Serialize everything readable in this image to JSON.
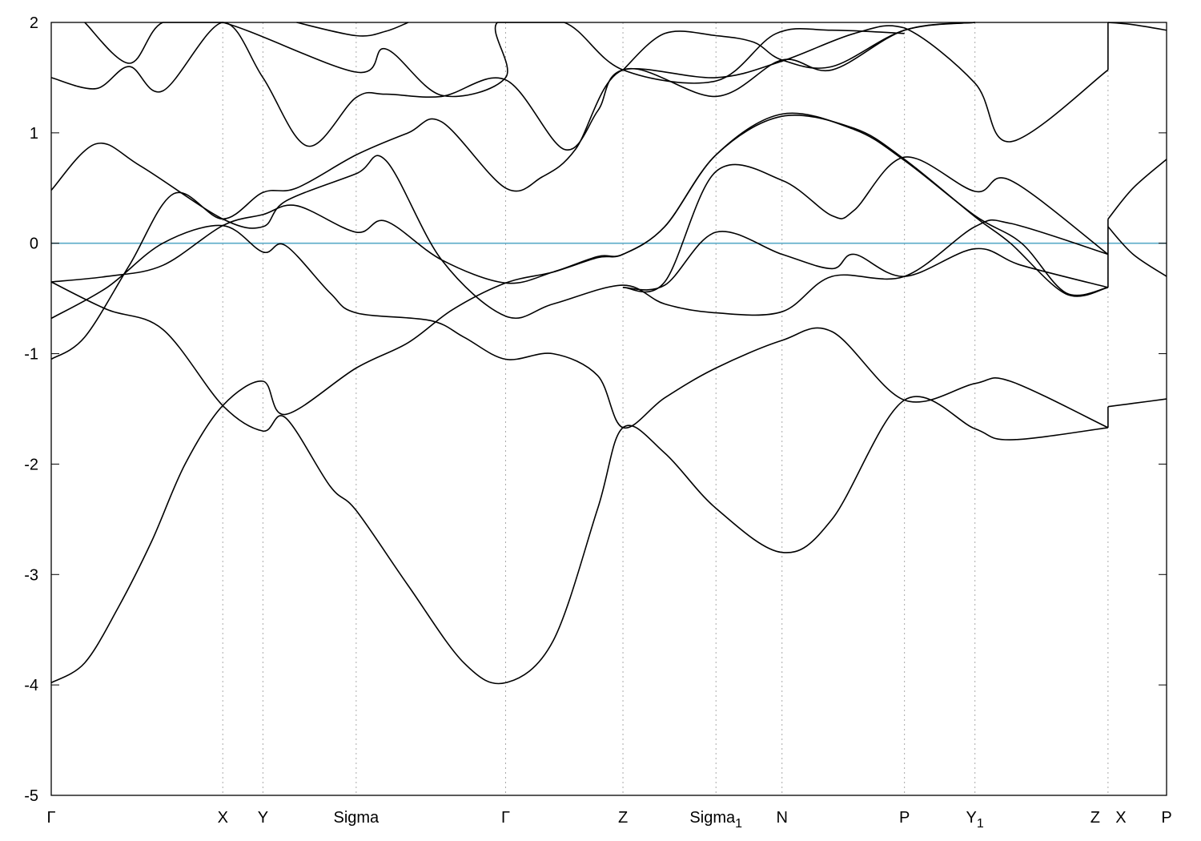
{
  "chart_data": {
    "type": "line",
    "title": "",
    "xlabel": "",
    "ylabel": "",
    "ylim": [
      -5,
      2
    ],
    "xlim": [
      0,
      1
    ],
    "yticks": [
      2,
      1,
      0,
      -1,
      -2,
      -3,
      -4,
      -5
    ],
    "grid": "vertical dotted lines at high-symmetry points",
    "fermi_level": 0,
    "fermi_color": "#5aaac8",
    "kpoints": [
      {
        "label": "Γ",
        "sub": "",
        "x": 0.0
      },
      {
        "label": "X",
        "sub": "",
        "x": 0.1538
      },
      {
        "label": "Y",
        "sub": "",
        "x": 0.1898
      },
      {
        "label": "Sigma",
        "sub": "",
        "x": 0.2734
      },
      {
        "label": "Γ",
        "sub": "",
        "x": 0.4074
      },
      {
        "label": "Z",
        "sub": "",
        "x": 0.5126
      },
      {
        "label": "Sigma",
        "sub": "1",
        "x": 0.596
      },
      {
        "label": "N",
        "sub": "",
        "x": 0.6552
      },
      {
        "label": "P",
        "sub": "",
        "x": 0.765
      },
      {
        "label": "Y",
        "sub": "1",
        "x": 0.8282
      },
      {
        "label": "Z",
        "sub": "",
        "x": 0.9475
      },
      {
        "label": "X",
        "sub": "",
        "x": 0.9475
      },
      {
        "label": "P",
        "sub": "",
        "x": 1.0
      }
    ],
    "series": [
      {
        "values": [
          [
            0,
            -3.98
          ],
          [
            0.03,
            -3.8
          ],
          [
            0.06,
            -3.3
          ],
          [
            0.09,
            -2.7
          ],
          [
            0.12,
            -2.0
          ],
          [
            0.1538,
            -1.47
          ],
          [
            0.1898,
            -1.25
          ],
          [
            0.21,
            -1.55
          ],
          [
            0.2734,
            -1.13
          ],
          [
            0.32,
            -0.9
          ],
          [
            0.36,
            -0.6
          ],
          [
            0.4074,
            -0.36
          ],
          [
            0.45,
            -0.26
          ],
          [
            0.49,
            -0.13
          ],
          [
            0.5126,
            -0.1
          ],
          [
            0.55,
            0.15
          ],
          [
            0.596,
            0.8
          ],
          [
            0.6552,
            1.17
          ],
          [
            0.72,
            1.03
          ],
          [
            0.765,
            0.75
          ],
          [
            0.8282,
            0.25
          ],
          [
            0.87,
            0.0
          ],
          [
            0.91,
            -0.45
          ],
          [
            0.9475,
            -0.4
          ]
        ]
      },
      {
        "values": [
          [
            0,
            -0.35
          ],
          [
            0.05,
            -0.6
          ],
          [
            0.1,
            -0.78
          ],
          [
            0.1538,
            -1.47
          ],
          [
            0.1898,
            -1.7
          ],
          [
            0.21,
            -1.58
          ],
          [
            0.25,
            -2.2
          ],
          [
            0.2734,
            -2.42
          ],
          [
            0.32,
            -3.1
          ],
          [
            0.37,
            -3.8
          ],
          [
            0.4074,
            -3.98
          ],
          [
            0.45,
            -3.6
          ],
          [
            0.49,
            -2.4
          ],
          [
            0.5126,
            -1.67
          ],
          [
            0.55,
            -1.9
          ],
          [
            0.596,
            -2.4
          ],
          [
            0.6552,
            -2.8
          ],
          [
            0.7,
            -2.5
          ],
          [
            0.765,
            -1.42
          ],
          [
            0.8282,
            -1.68
          ],
          [
            0.86,
            -1.78
          ],
          [
            0.9475,
            -1.67
          ]
        ]
      },
      {
        "values": [
          [
            0,
            -0.35
          ],
          [
            0.05,
            -0.3
          ],
          [
            0.1,
            -0.2
          ],
          [
            0.1538,
            0.16
          ],
          [
            0.1898,
            0.26
          ],
          [
            0.22,
            0.34
          ],
          [
            0.2734,
            0.1
          ],
          [
            0.3,
            0.2
          ],
          [
            0.35,
            -0.15
          ],
          [
            0.4074,
            -0.36
          ],
          [
            0.45,
            -0.26
          ],
          [
            0.49,
            -0.12
          ],
          [
            0.5126,
            -0.1
          ],
          [
            0.55,
            0.15
          ],
          [
            0.596,
            0.8
          ],
          [
            0.6552,
            1.15
          ],
          [
            0.72,
            1.04
          ],
          [
            0.765,
            0.76
          ],
          [
            0.8282,
            0.24
          ],
          [
            0.86,
            0.0
          ],
          [
            0.91,
            -0.46
          ],
          [
            0.9475,
            -0.4
          ]
        ]
      },
      {
        "values": [
          [
            0,
            -1.05
          ],
          [
            0.03,
            -0.85
          ],
          [
            0.07,
            -0.2
          ],
          [
            0.11,
            0.45
          ],
          [
            0.1538,
            0.22
          ],
          [
            0.1898,
            0.46
          ],
          [
            0.22,
            0.5
          ],
          [
            0.2734,
            0.8
          ],
          [
            0.32,
            1.0
          ],
          [
            0.35,
            1.1
          ],
          [
            0.4074,
            0.5
          ],
          [
            0.44,
            0.6
          ],
          [
            0.47,
            0.85
          ],
          [
            0.5126,
            1.57
          ],
          [
            0.596,
            1.33
          ],
          [
            0.6552,
            1.66
          ],
          [
            0.7,
            1.57
          ],
          [
            0.765,
            1.93
          ],
          [
            0.8282,
            2.05
          ]
        ]
      },
      {
        "values": [
          [
            0,
            -0.68
          ],
          [
            0.05,
            -0.4
          ],
          [
            0.1,
            0.0
          ],
          [
            0.1538,
            0.16
          ],
          [
            0.1898,
            -0.08
          ],
          [
            0.21,
            -0.02
          ],
          [
            0.25,
            -0.45
          ],
          [
            0.2734,
            -0.63
          ],
          [
            0.34,
            -0.7
          ],
          [
            0.37,
            -0.85
          ],
          [
            0.4074,
            -1.05
          ],
          [
            0.45,
            -1.0
          ],
          [
            0.49,
            -1.2
          ],
          [
            0.5126,
            -1.67
          ],
          [
            0.55,
            -1.4
          ],
          [
            0.596,
            -1.13
          ],
          [
            0.6552,
            -0.88
          ],
          [
            0.7,
            -0.8
          ],
          [
            0.765,
            -1.42
          ],
          [
            0.8282,
            -1.27
          ],
          [
            0.86,
            -1.25
          ],
          [
            0.9475,
            -1.67
          ]
        ]
      },
      {
        "values": [
          [
            0,
            0.48
          ],
          [
            0.04,
            0.9
          ],
          [
            0.08,
            0.7
          ],
          [
            0.1538,
            0.22
          ],
          [
            0.1898,
            0.15
          ],
          [
            0.21,
            0.38
          ],
          [
            0.2734,
            0.63
          ],
          [
            0.3,
            0.75
          ],
          [
            0.35,
            -0.15
          ],
          [
            0.4074,
            -0.66
          ],
          [
            0.45,
            -0.55
          ],
          [
            0.5126,
            -0.38
          ],
          [
            0.55,
            -0.55
          ],
          [
            0.596,
            -0.63
          ],
          [
            0.6552,
            -0.62
          ],
          [
            0.7,
            -0.3
          ],
          [
            0.765,
            -0.3
          ],
          [
            0.8282,
            0.15
          ],
          [
            0.86,
            0.18
          ],
          [
            0.9475,
            -0.1
          ]
        ]
      },
      {
        "values": [
          [
            0,
            1.5
          ],
          [
            0.04,
            1.4
          ],
          [
            0.07,
            1.6
          ],
          [
            0.1,
            1.38
          ],
          [
            0.1538,
            2.0
          ],
          [
            0.1898,
            1.5
          ],
          [
            0.23,
            0.88
          ],
          [
            0.2734,
            1.32
          ],
          [
            0.3,
            1.35
          ],
          [
            0.35,
            1.33
          ],
          [
            0.4074,
            1.48
          ],
          [
            0.46,
            0.85
          ],
          [
            0.49,
            1.2
          ],
          [
            0.5126,
            1.57
          ],
          [
            0.596,
            1.5
          ],
          [
            0.6552,
            1.65
          ],
          [
            0.72,
            1.9
          ],
          [
            0.765,
            1.95
          ],
          [
            0.8282,
            1.45
          ],
          [
            0.86,
            0.92
          ],
          [
            0.9475,
            1.57
          ]
        ]
      },
      {
        "values": [
          [
            0.03,
            2.0
          ],
          [
            0.07,
            1.63
          ],
          [
            0.1,
            2.0
          ],
          [
            0.1538,
            2.0
          ],
          [
            0.2734,
            1.55
          ],
          [
            0.3,
            1.76
          ],
          [
            0.35,
            1.34
          ],
          [
            0.4074,
            1.5
          ],
          [
            0.4,
            2.05
          ],
          [
            0.46,
            2.0
          ],
          [
            0.5126,
            1.57
          ],
          [
            0.596,
            1.47
          ],
          [
            0.65,
            1.9
          ],
          [
            0.7,
            1.93
          ],
          [
            0.765,
            1.9
          ]
        ]
      },
      {
        "values": [
          [
            0.22,
            2.0
          ],
          [
            0.2734,
            1.88
          ],
          [
            0.3,
            1.92
          ],
          [
            0.32,
            2.05
          ]
        ]
      },
      {
        "values": [
          [
            0.5126,
            1.57
          ],
          [
            0.55,
            1.9
          ],
          [
            0.596,
            1.88
          ],
          [
            0.63,
            1.82
          ],
          [
            0.6552,
            1.66
          ],
          [
            0.7,
            1.6
          ],
          [
            0.765,
            1.93
          ],
          [
            0.8282,
            2.0
          ]
        ]
      },
      {
        "values": [
          [
            0.5126,
            -0.4
          ],
          [
            0.55,
            -0.38
          ],
          [
            0.596,
            0.1
          ],
          [
            0.6552,
            -0.1
          ],
          [
            0.7,
            -0.23
          ],
          [
            0.72,
            -0.1
          ],
          [
            0.765,
            -0.3
          ],
          [
            0.8282,
            -0.05
          ],
          [
            0.87,
            -0.2
          ],
          [
            0.9475,
            -0.4
          ]
        ]
      },
      {
        "values": [
          [
            0.5126,
            -0.4
          ],
          [
            0.55,
            -0.35
          ],
          [
            0.596,
            0.65
          ],
          [
            0.6552,
            0.57
          ],
          [
            0.7,
            0.25
          ],
          [
            0.72,
            0.3
          ],
          [
            0.765,
            0.78
          ],
          [
            0.8282,
            0.47
          ],
          [
            0.86,
            0.57
          ],
          [
            0.9475,
            -0.1
          ]
        ]
      },
      {
        "values": [
          [
            0.9475,
            0.22
          ],
          [
            0.97,
            0.5
          ],
          [
            1.0,
            0.76
          ]
        ]
      },
      {
        "values": [
          [
            0.9475,
            0.15
          ],
          [
            0.97,
            -0.1
          ],
          [
            1.0,
            -0.3
          ]
        ]
      },
      {
        "values": [
          [
            0.9475,
            -1.48
          ],
          [
            0.97,
            -1.45
          ],
          [
            1.0,
            -1.41
          ]
        ]
      },
      {
        "values": [
          [
            0.9475,
            2.0
          ],
          [
            0.97,
            1.98
          ],
          [
            1.0,
            1.93
          ]
        ]
      },
      {
        "values": [
          [
            0,
            -4.0
          ],
          [
            0.0,
            2.0
          ]
        ],
        "hidden": true
      }
    ]
  }
}
